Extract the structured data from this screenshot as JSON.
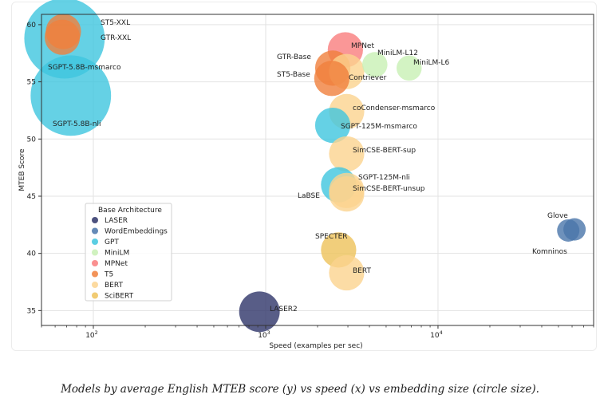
{
  "caption": "Models by average English MTEB score (y) vs speed (x) vs embedding size (circle size).",
  "chart_data": {
    "type": "scatter",
    "xlabel": "Speed (examples per sec)",
    "ylabel": "MTEB Score",
    "xscale": "log",
    "xlim": [
      50,
      80000
    ],
    "ylim": [
      33.7,
      60.9
    ],
    "xticks": [
      {
        "value": 100,
        "base": "10",
        "exp": "2"
      },
      {
        "value": 1000,
        "base": "10",
        "exp": "3"
      },
      {
        "value": 10000,
        "base": "10",
        "exp": "4"
      }
    ],
    "yticks": [
      35,
      40,
      45,
      50,
      55,
      60
    ],
    "grid": true,
    "legend": {
      "title": "Base Architecture",
      "placement": "lower-left",
      "entries": [
        {
          "name": "LASER",
          "color": "#2e3469"
        },
        {
          "name": "WordEmbeddings",
          "color": "#4a76aa"
        },
        {
          "name": "GPT",
          "color": "#3ec6de"
        },
        {
          "name": "MiniLM",
          "color": "#c8f0b4"
        },
        {
          "name": "MPNet",
          "color": "#f97d7d"
        },
        {
          "name": "T5",
          "color": "#f0803c"
        },
        {
          "name": "BERT",
          "color": "#fbd38f"
        },
        {
          "name": "SciBERT",
          "color": "#eec25a"
        }
      ]
    },
    "points": [
      {
        "label": "ST5-XXL",
        "arch": "T5",
        "x": 67,
        "y": 59.4,
        "size": 768
      },
      {
        "label": "GTR-XXL",
        "arch": "T5",
        "x": 66,
        "y": 58.9,
        "size": 768
      },
      {
        "label": "SGPT-5.8B-msmarco",
        "arch": "GPT",
        "x": 68,
        "y": 58.8,
        "size": 4096
      },
      {
        "label": "SGPT-5.8B-nli",
        "arch": "GPT",
        "x": 74,
        "y": 53.8,
        "size": 4096
      },
      {
        "label": "MPNet",
        "arch": "MPNet",
        "x": 2900,
        "y": 57.8,
        "size": 768
      },
      {
        "label": "MiniLM-L12",
        "arch": "MiniLM",
        "x": 4300,
        "y": 56.5,
        "size": 384
      },
      {
        "label": "MiniLM-L6",
        "arch": "MiniLM",
        "x": 6800,
        "y": 56.2,
        "size": 384
      },
      {
        "label": "GTR-Base",
        "arch": "T5",
        "x": 2450,
        "y": 56.2,
        "size": 768
      },
      {
        "label": "Contriever",
        "arch": "BERT",
        "x": 2950,
        "y": 55.9,
        "size": 768
      },
      {
        "label": "ST5-Base",
        "arch": "T5",
        "x": 2420,
        "y": 55.3,
        "size": 768
      },
      {
        "label": "coCondenser-msmarco",
        "arch": "BERT",
        "x": 2950,
        "y": 52.4,
        "size": 768
      },
      {
        "label": "SGPT-125M-msmarco",
        "arch": "GPT",
        "x": 2450,
        "y": 51.2,
        "size": 768
      },
      {
        "label": "SimCSE-BERT-sup",
        "arch": "BERT",
        "x": 2950,
        "y": 48.7,
        "size": 768
      },
      {
        "label": "SGPT-125M-nli",
        "arch": "GPT",
        "x": 2650,
        "y": 46.0,
        "size": 768
      },
      {
        "label": "SimCSE-BERT-unsup",
        "arch": "BERT",
        "x": 2950,
        "y": 45.5,
        "size": 768
      },
      {
        "label": "LaBSE",
        "arch": "BERT",
        "x": 2950,
        "y": 45.2,
        "size": 768
      },
      {
        "label": "Glove",
        "arch": "WordEmbeddings",
        "x": 62000,
        "y": 42.1,
        "size": 300
      },
      {
        "label": "Komninos",
        "arch": "WordEmbeddings",
        "x": 57000,
        "y": 42.0,
        "size": 300
      },
      {
        "label": "SPECTER",
        "arch": "SciBERT",
        "x": 2650,
        "y": 40.3,
        "size": 768
      },
      {
        "label": "BERT",
        "arch": "BERT",
        "x": 2950,
        "y": 38.3,
        "size": 768
      },
      {
        "label": "LASER2",
        "arch": "LASER",
        "x": 920,
        "y": 34.9,
        "size": 1024
      }
    ]
  }
}
